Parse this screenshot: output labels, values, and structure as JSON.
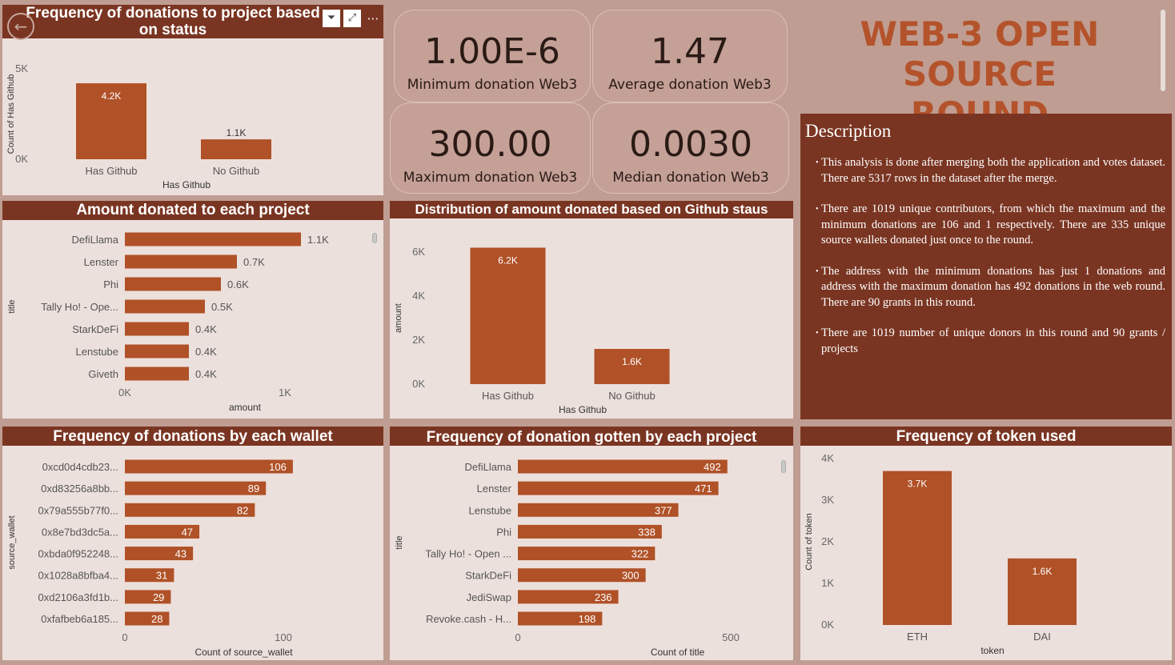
{
  "header": {
    "title_line1": "WEB-3 OPEN SOURCE",
    "title_line2": "ROUND"
  },
  "kpis": [
    {
      "value": "1.00E-6",
      "label": "Minimum donation Web3"
    },
    {
      "value": "1.47",
      "label": "Average donation Web3"
    },
    {
      "value": "300.00",
      "label": "Maximum donation Web3"
    },
    {
      "value": "0.0030",
      "label": "Median donation Web3"
    }
  ],
  "description": {
    "heading": "Description",
    "paragraphs": [
      "This analysis is done after merging both the application and votes dataset. There are 5317 rows in the dataset after the merge.",
      "There are 1019 unique contributors, from which the maximum and the minimum donations are 106 and 1 respectively. There are 335 unique source wallets donated just once to the round.",
      "The address with the minimum donations has just 1 donations and address with the maximum donation has 492 donations in the web round. There are 90 grants in this round.",
      "There are 1019 number of unique donors in this round and 90 grants / projects"
    ]
  },
  "colors": {
    "bar": "#b05127",
    "header_bg": "#7a3522",
    "panel_bg": "#ece0dc",
    "page_bg": "#bf9d92",
    "title_text": "#b4532b"
  },
  "chart_data": [
    {
      "id": "github_status_count",
      "type": "bar",
      "title": "Frequency of donations to project based on status",
      "categories": [
        "Has Github",
        "No Github"
      ],
      "values": [
        4200,
        1100
      ],
      "data_labels": [
        "4.2K",
        "1.1K"
      ],
      "xlabel": "Has Github",
      "ylabel": "Count of Has Github",
      "ylim": [
        0,
        5000
      ],
      "yticks": [
        0,
        5000
      ],
      "ytick_labels": [
        "0K",
        "5K"
      ]
    },
    {
      "id": "amount_per_project",
      "type": "bar",
      "orientation": "horizontal",
      "title": "Amount donated to each project",
      "categories": [
        "DefiLlama",
        "Lenster",
        "Phi",
        "Tally Ho! - Ope...",
        "StarkDeFi",
        "Lenstube",
        "Giveth"
      ],
      "values": [
        1100,
        700,
        600,
        500,
        400,
        400,
        400
      ],
      "data_labels": [
        "1.1K",
        "0.7K",
        "0.6K",
        "0.5K",
        "0.4K",
        "0.4K",
        "0.4K"
      ],
      "xlabel": "amount",
      "ylabel": "title",
      "xlim": [
        0,
        1000
      ],
      "xticks": [
        0,
        1000
      ],
      "xtick_labels": [
        "0K",
        "1K"
      ]
    },
    {
      "id": "amount_by_github",
      "type": "bar",
      "title": "Distribution of amount donated based on Github staus",
      "categories": [
        "Has Github",
        "No Github"
      ],
      "values": [
        6200,
        1600
      ],
      "data_labels": [
        "6.2K",
        "1.6K"
      ],
      "xlabel": "Has Github",
      "ylabel": "amount",
      "ylim": [
        0,
        6000
      ],
      "yticks": [
        0,
        2000,
        4000,
        6000
      ],
      "ytick_labels": [
        "0K",
        "2K",
        "4K",
        "6K"
      ]
    },
    {
      "id": "donations_by_wallet",
      "type": "bar",
      "orientation": "horizontal",
      "title": "Frequency of donations by each wallet",
      "categories": [
        "0xcd0d4cdb23...",
        "0xd83256a8bb...",
        "0x79a555b77f0...",
        "0x8e7bd3dc5a...",
        "0xbda0f952248...",
        "0x1028a8bfba4...",
        "0xd2106a3fd1b...",
        "0xfafbeb6a185..."
      ],
      "values": [
        106,
        89,
        82,
        47,
        43,
        31,
        29,
        28
      ],
      "data_labels": [
        "106",
        "89",
        "82",
        "47",
        "43",
        "31",
        "29",
        "28"
      ],
      "xlabel": "Count of source_wallet",
      "ylabel": "source_wallet",
      "xlim": [
        0,
        100
      ],
      "xticks": [
        0,
        100
      ],
      "xtick_labels": [
        "0",
        "100"
      ]
    },
    {
      "id": "donations_per_project",
      "type": "bar",
      "orientation": "horizontal",
      "title": "Frequency of donation gotten by each project",
      "categories": [
        "DefiLlama",
        "Lenster",
        "Lenstube",
        "Phi",
        "Tally Ho! - Open ...",
        "StarkDeFi",
        "JediSwap",
        "Revoke.cash - H..."
      ],
      "values": [
        492,
        471,
        377,
        338,
        322,
        300,
        236,
        198
      ],
      "data_labels": [
        "492",
        "471",
        "377",
        "338",
        "322",
        "300",
        "236",
        "198"
      ],
      "xlabel": "Count of title",
      "ylabel": "title",
      "xlim": [
        0,
        500
      ],
      "xticks": [
        0,
        500
      ],
      "xtick_labels": [
        "0",
        "500"
      ]
    },
    {
      "id": "token_frequency",
      "type": "bar",
      "title": "Frequency of token used",
      "categories": [
        "ETH",
        "DAI"
      ],
      "values": [
        3700,
        1600
      ],
      "data_labels": [
        "3.7K",
        "1.6K"
      ],
      "xlabel": "token",
      "ylabel": "Count of token",
      "ylim": [
        0,
        4000
      ],
      "yticks": [
        0,
        1000,
        2000,
        3000,
        4000
      ],
      "ytick_labels": [
        "0K",
        "1K",
        "2K",
        "3K",
        "4K"
      ]
    }
  ]
}
